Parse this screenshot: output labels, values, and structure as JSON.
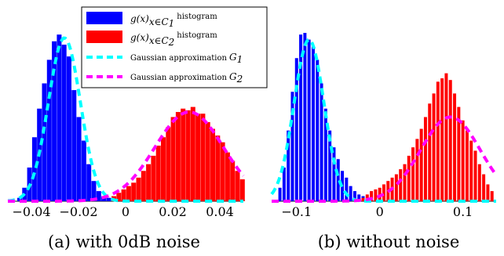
{
  "colors": {
    "class1": "#0000ff",
    "class2": "#ff0000",
    "gauss1": "#00ffff",
    "gauss2": "#ff00ff"
  },
  "legend": {
    "items": [
      {
        "math": "g(x)",
        "sub": "x∈C",
        "subidx": "1",
        "suffix": "histogram",
        "kind": "bar",
        "color": "#0000ff"
      },
      {
        "math": "g(x)",
        "sub": "x∈C",
        "subidx": "2",
        "suffix": "histogram",
        "kind": "bar",
        "color": "#ff0000"
      },
      {
        "text": "Gaussian approximation",
        "math": "G",
        "subidx": "1",
        "kind": "dash",
        "color": "#00ffff"
      },
      {
        "text": "Gaussian approximation",
        "math": "G",
        "subidx": "2",
        "kind": "dash",
        "color": "#ff00ff"
      }
    ]
  },
  "chart_data": [
    {
      "type": "bar",
      "caption": "(a) with 0dB noise",
      "xlim": [
        -0.05,
        0.05
      ],
      "ylim": [
        0,
        1
      ],
      "xticks": [
        -0.04,
        -0.02,
        0,
        0.02,
        0.04
      ],
      "xtick_labels": [
        "−0.04",
        "−0.02",
        "0",
        "0.02",
        "0.04"
      ],
      "series": [
        {
          "x": [
            -0.045,
            -0.0429,
            -0.0408,
            -0.0387,
            -0.0366,
            -0.0345,
            -0.0324,
            -0.0303,
            -0.0282,
            -0.0261,
            -0.024,
            -0.0219,
            -0.0198,
            -0.0177,
            -0.0156,
            -0.0135,
            -0.0114,
            -0.0093,
            -0.0072,
            -0.0051,
            -0.003
          ],
          "values": [
            0.02,
            0.08,
            0.2,
            0.38,
            0.55,
            0.7,
            0.84,
            0.95,
            0.99,
            0.93,
            0.86,
            0.66,
            0.5,
            0.36,
            0.22,
            0.12,
            0.06,
            0.03,
            0.02,
            0.01,
            0.005
          ]
        },
        {
          "x": [
            -0.005,
            -0.0029,
            -0.0008,
            0.0013,
            0.0034,
            0.0055,
            0.0076,
            0.0097,
            0.0118,
            0.0139,
            0.016,
            0.0181,
            0.0202,
            0.0223,
            0.0244,
            0.0265,
            0.0286,
            0.0307,
            0.0328,
            0.0349,
            0.037,
            0.0391,
            0.0412,
            0.0433,
            0.0454,
            0.0475,
            0.0496
          ],
          "values": [
            0.03,
            0.05,
            0.07,
            0.09,
            0.11,
            0.14,
            0.18,
            0.22,
            0.27,
            0.33,
            0.38,
            0.44,
            0.5,
            0.53,
            0.55,
            0.54,
            0.56,
            0.52,
            0.52,
            0.47,
            0.43,
            0.39,
            0.35,
            0.29,
            0.24,
            0.18,
            0.13
          ]
        }
      ],
      "gaussians": [
        {
          "mu": -0.026,
          "sigma": 0.0068,
          "peak": 0.97
        },
        {
          "mu": 0.027,
          "sigma": 0.0145,
          "peak": 0.53
        }
      ]
    },
    {
      "type": "bar",
      "caption": "(b) without noise",
      "xlim": [
        -0.13,
        0.14
      ],
      "ylim": [
        0,
        1
      ],
      "xticks": [
        -0.1,
        0,
        0.1
      ],
      "xtick_labels": [
        "−0.1",
        "0",
        "0.1"
      ],
      "series": [
        {
          "x": [
            -0.12,
            -0.115,
            -0.11,
            -0.105,
            -0.1,
            -0.095,
            -0.09,
            -0.085,
            -0.08,
            -0.075,
            -0.07,
            -0.065,
            -0.06,
            -0.055,
            -0.05,
            -0.045,
            -0.04,
            -0.035,
            -0.03,
            -0.025,
            -0.02,
            -0.015,
            -0.01
          ],
          "values": [
            0.08,
            0.2,
            0.42,
            0.65,
            0.85,
            0.99,
            1.0,
            0.96,
            0.92,
            0.84,
            0.7,
            0.55,
            0.42,
            0.32,
            0.25,
            0.18,
            0.14,
            0.09,
            0.06,
            0.04,
            0.03,
            0.02,
            0.01
          ]
        },
        {
          "x": [
            -0.02,
            -0.015,
            -0.01,
            -0.005,
            0,
            0.005,
            0.01,
            0.015,
            0.02,
            0.025,
            0.03,
            0.035,
            0.04,
            0.045,
            0.05,
            0.055,
            0.06,
            0.065,
            0.07,
            0.075,
            0.08,
            0.085,
            0.09,
            0.095,
            0.1,
            0.105,
            0.11,
            0.115,
            0.12,
            0.125,
            0.13,
            0.135
          ],
          "values": [
            0.02,
            0.04,
            0.06,
            0.07,
            0.08,
            0.1,
            0.12,
            0.14,
            0.16,
            0.19,
            0.22,
            0.27,
            0.32,
            0.37,
            0.43,
            0.5,
            0.58,
            0.64,
            0.71,
            0.73,
            0.76,
            0.72,
            0.64,
            0.56,
            0.48,
            0.42,
            0.36,
            0.3,
            0.22,
            0.16,
            0.1,
            0.06
          ]
        }
      ],
      "gaussians": [
        {
          "mu": -0.085,
          "sigma": 0.018,
          "peak": 0.96
        },
        {
          "mu": 0.085,
          "sigma": 0.036,
          "peak": 0.5
        }
      ]
    }
  ]
}
